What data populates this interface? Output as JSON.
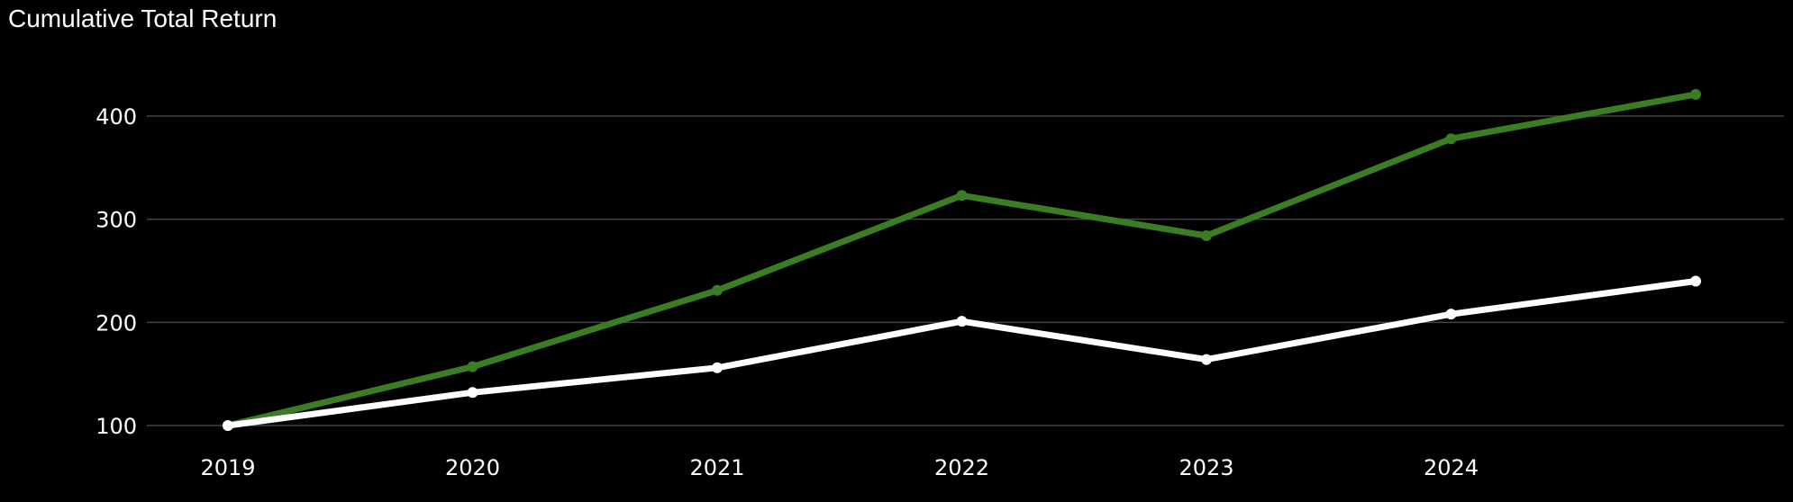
{
  "chart_data": {
    "type": "line",
    "title": "Cumulative Total Return",
    "xlabel": "",
    "ylabel": "",
    "x": [
      "2019",
      "2020",
      "2021",
      "2022",
      "2023",
      "2024",
      ""
    ],
    "x_ticks": [
      "2019",
      "2020",
      "2021",
      "2022",
      "2023",
      "2024"
    ],
    "y_ticks": [
      100,
      200,
      300,
      400
    ],
    "ylim": [
      80,
      460
    ],
    "grid": true,
    "legend": "none",
    "series": [
      {
        "values": [
          100,
          157,
          231,
          323,
          284,
          378,
          421
        ],
        "color": "#3a7d22"
      },
      {
        "values": [
          100,
          132,
          156,
          201,
          164,
          208,
          240
        ],
        "color": "#ffffff"
      }
    ]
  },
  "colors": {
    "background": "#000000",
    "gridline": "#444444",
    "text": "#ffffff"
  }
}
